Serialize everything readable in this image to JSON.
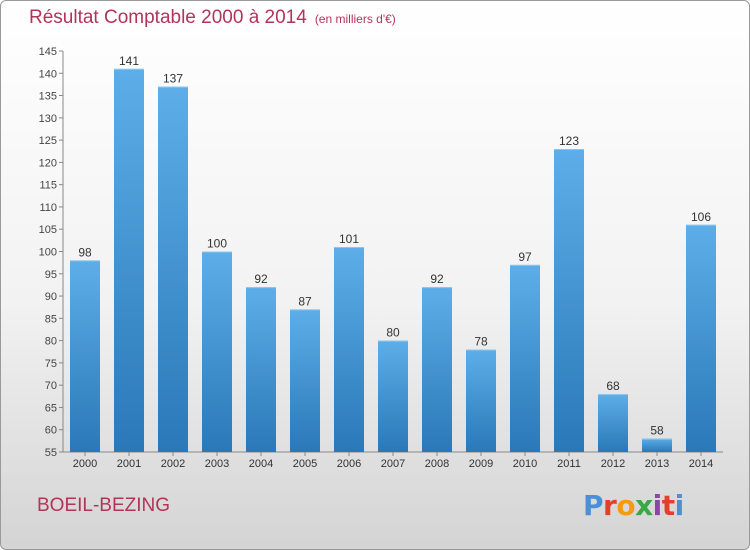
{
  "header": {
    "title": "Résultat Comptable 2000 à 2014",
    "unit": "(en milliers d'€)"
  },
  "footer": {
    "commune": "BOEIL-BEZING",
    "logo": "Proxiti"
  },
  "colors": {
    "title": "#b4335a",
    "bar_light": "#5daee8",
    "bar_dark": "#2a78b8",
    "logo": [
      "#4a90d9",
      "#e2402b",
      "#f39c12",
      "#3aa844",
      "#8e44ad",
      "#e2402b",
      "#4a90d9"
    ]
  },
  "chart_data": {
    "type": "bar",
    "title": "Résultat Comptable 2000 à 2014",
    "xlabel": "",
    "ylabel": "",
    "ylim": [
      55,
      145
    ],
    "ytick_step": 5,
    "grid": false,
    "categories": [
      "2000",
      "2001",
      "2002",
      "2003",
      "2004",
      "2005",
      "2006",
      "2007",
      "2008",
      "2009",
      "2010",
      "2011",
      "2012",
      "2013",
      "2014"
    ],
    "values": [
      98,
      141,
      137,
      100,
      92,
      87,
      101,
      80,
      92,
      78,
      97,
      123,
      68,
      58,
      106
    ]
  }
}
